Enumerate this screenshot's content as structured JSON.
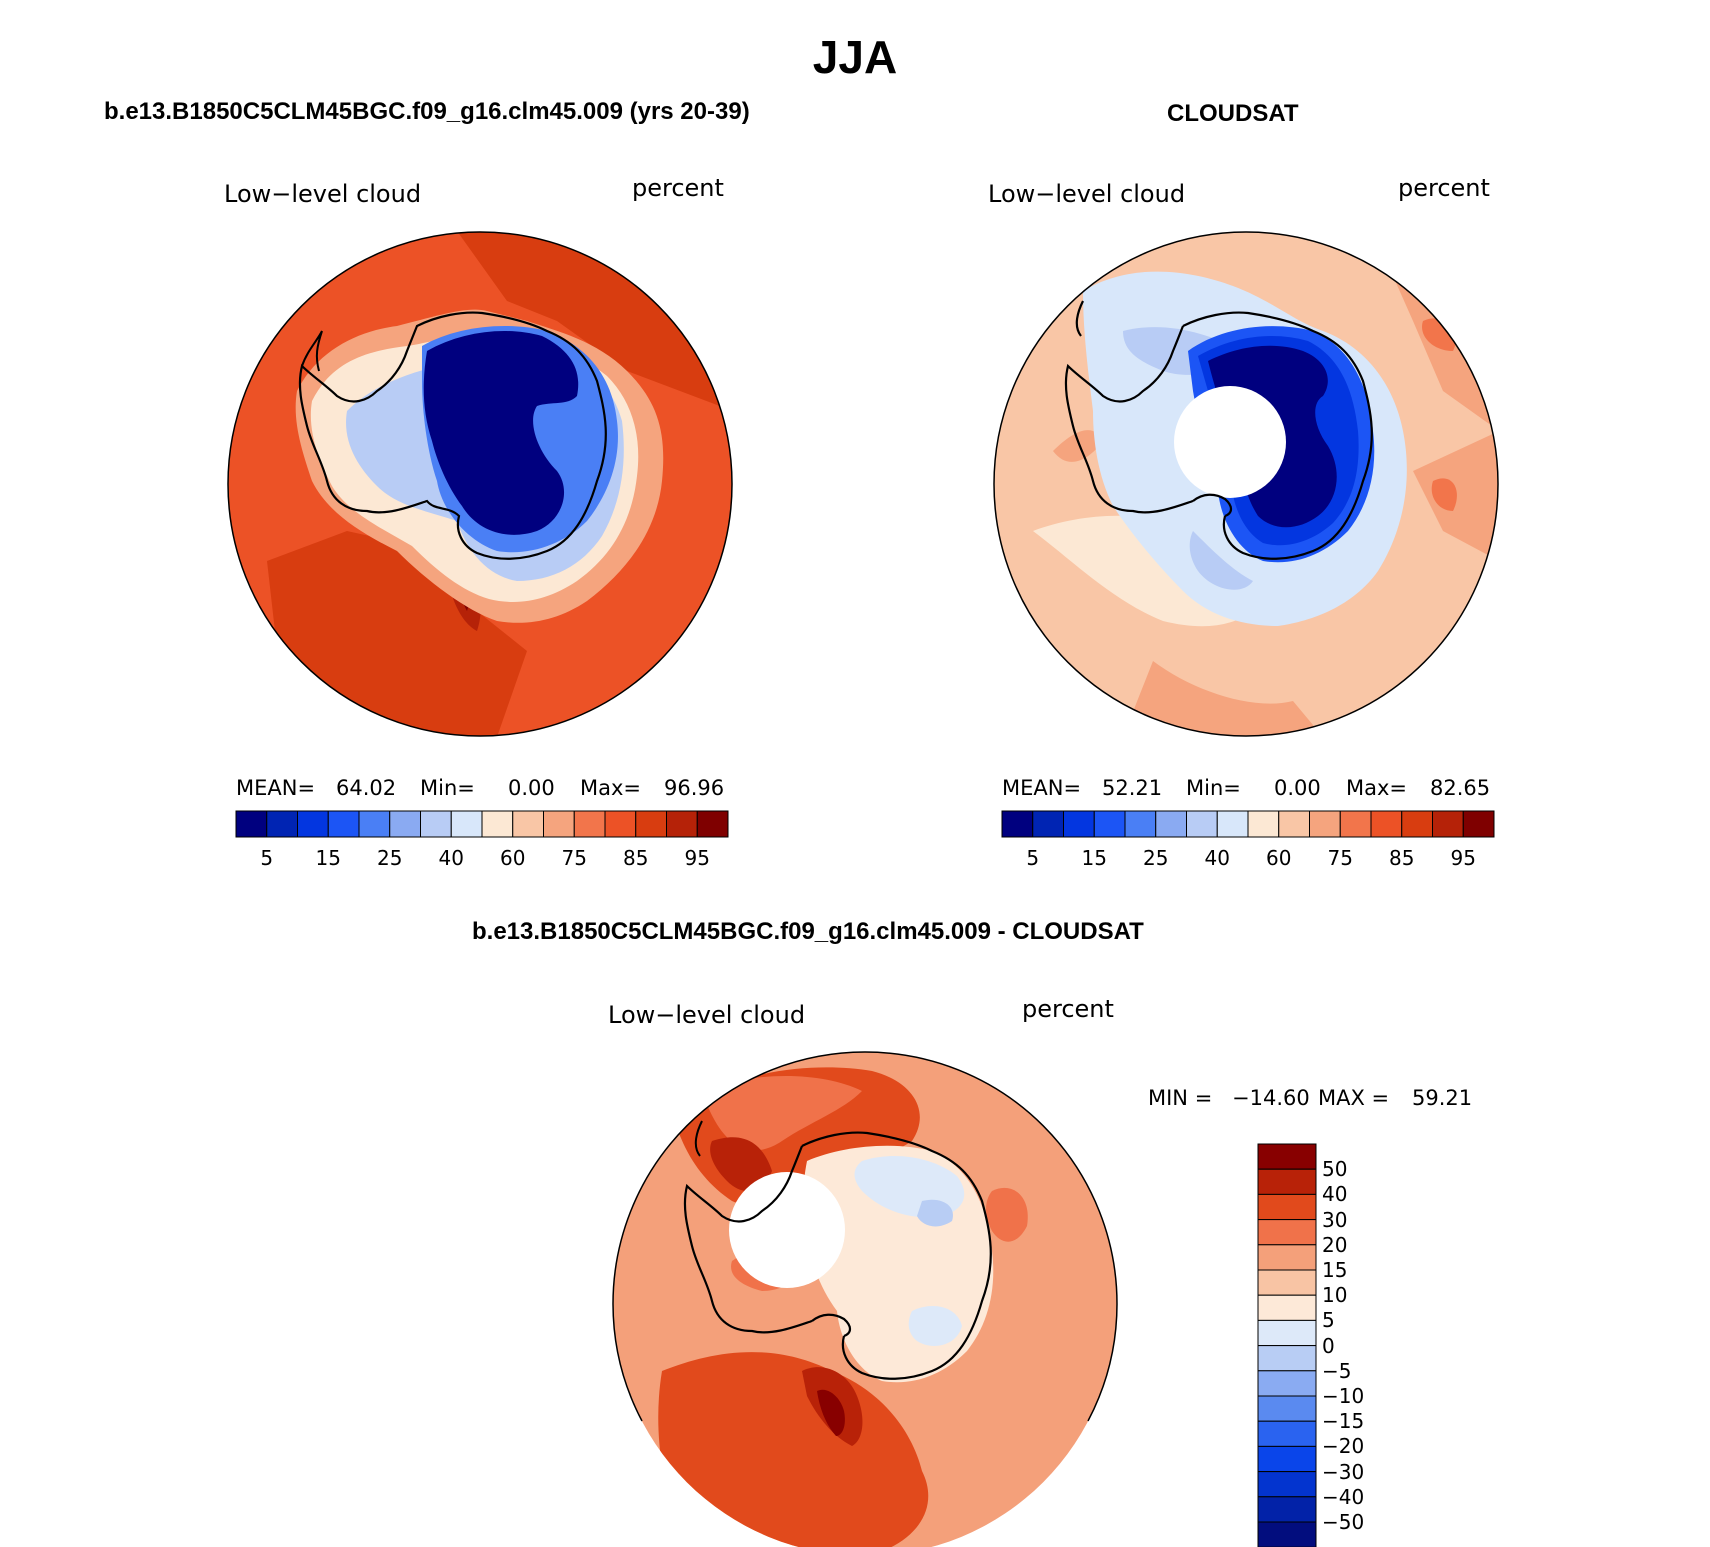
{
  "title": "JJA",
  "colors": {
    "seq": [
      "#00007f",
      "#0024b3",
      "#0336e0",
      "#1c55f5",
      "#4a7ff5",
      "#8aaaf2",
      "#b8ccf5",
      "#d8e7fa",
      "#fce8d4",
      "#f9c6a6",
      "#f5a47e",
      "#f2754b",
      "#ec5226",
      "#d83d10",
      "#b52208",
      "#7f0000"
    ],
    "diff": [
      "#020d7e",
      "#0222a8",
      "#0334cf",
      "#0a45ea",
      "#2a63f0",
      "#5a8af0",
      "#8aabf2",
      "#b8cdf4",
      "#dde9f9",
      "#fde9d8",
      "#f8c4a4",
      "#f4a07a",
      "#f0724a",
      "#e14a1c",
      "#b82208",
      "#880000"
    ],
    "coast": "#000000"
  },
  "panels": [
    {
      "heading": "b.e13.B1850C5CLM45BGC.f09_g16.clm45.009 (yrs 20-39)",
      "variable": "Low−level cloud",
      "units": "percent",
      "stats": {
        "mean_label": "MEAN=",
        "mean": "64.02",
        "min_label": "Min=",
        "min": "0.00",
        "max_label": "Max=",
        "max": "96.96"
      },
      "colorbar_ticks": [
        "5",
        "15",
        "25",
        "40",
        "60",
        "75",
        "85",
        "95"
      ]
    },
    {
      "heading": "CLOUDSAT",
      "variable": "Low−level cloud",
      "units": "percent",
      "stats": {
        "mean_label": "MEAN=",
        "mean": "52.21",
        "min_label": "Min=",
        "min": "0.00",
        "max_label": "Max=",
        "max": "82.65"
      },
      "colorbar_ticks": [
        "5",
        "15",
        "25",
        "40",
        "60",
        "75",
        "85",
        "95"
      ]
    },
    {
      "heading": "b.e13.B1850C5CLM45BGC.f09_g16.clm45.009 - CLOUDSAT",
      "variable": "Low−level cloud",
      "units": "percent",
      "stats": {
        "min_label": "MIN =",
        "min": "−14.60",
        "max_label": "MAX =",
        "max": "59.21"
      },
      "colorbar_ticks": [
        "50",
        "40",
        "30",
        "20",
        "15",
        "10",
        "5",
        "0",
        "−5",
        "−10",
        "−15",
        "−20",
        "−30",
        "−40",
        "−50"
      ]
    }
  ]
}
